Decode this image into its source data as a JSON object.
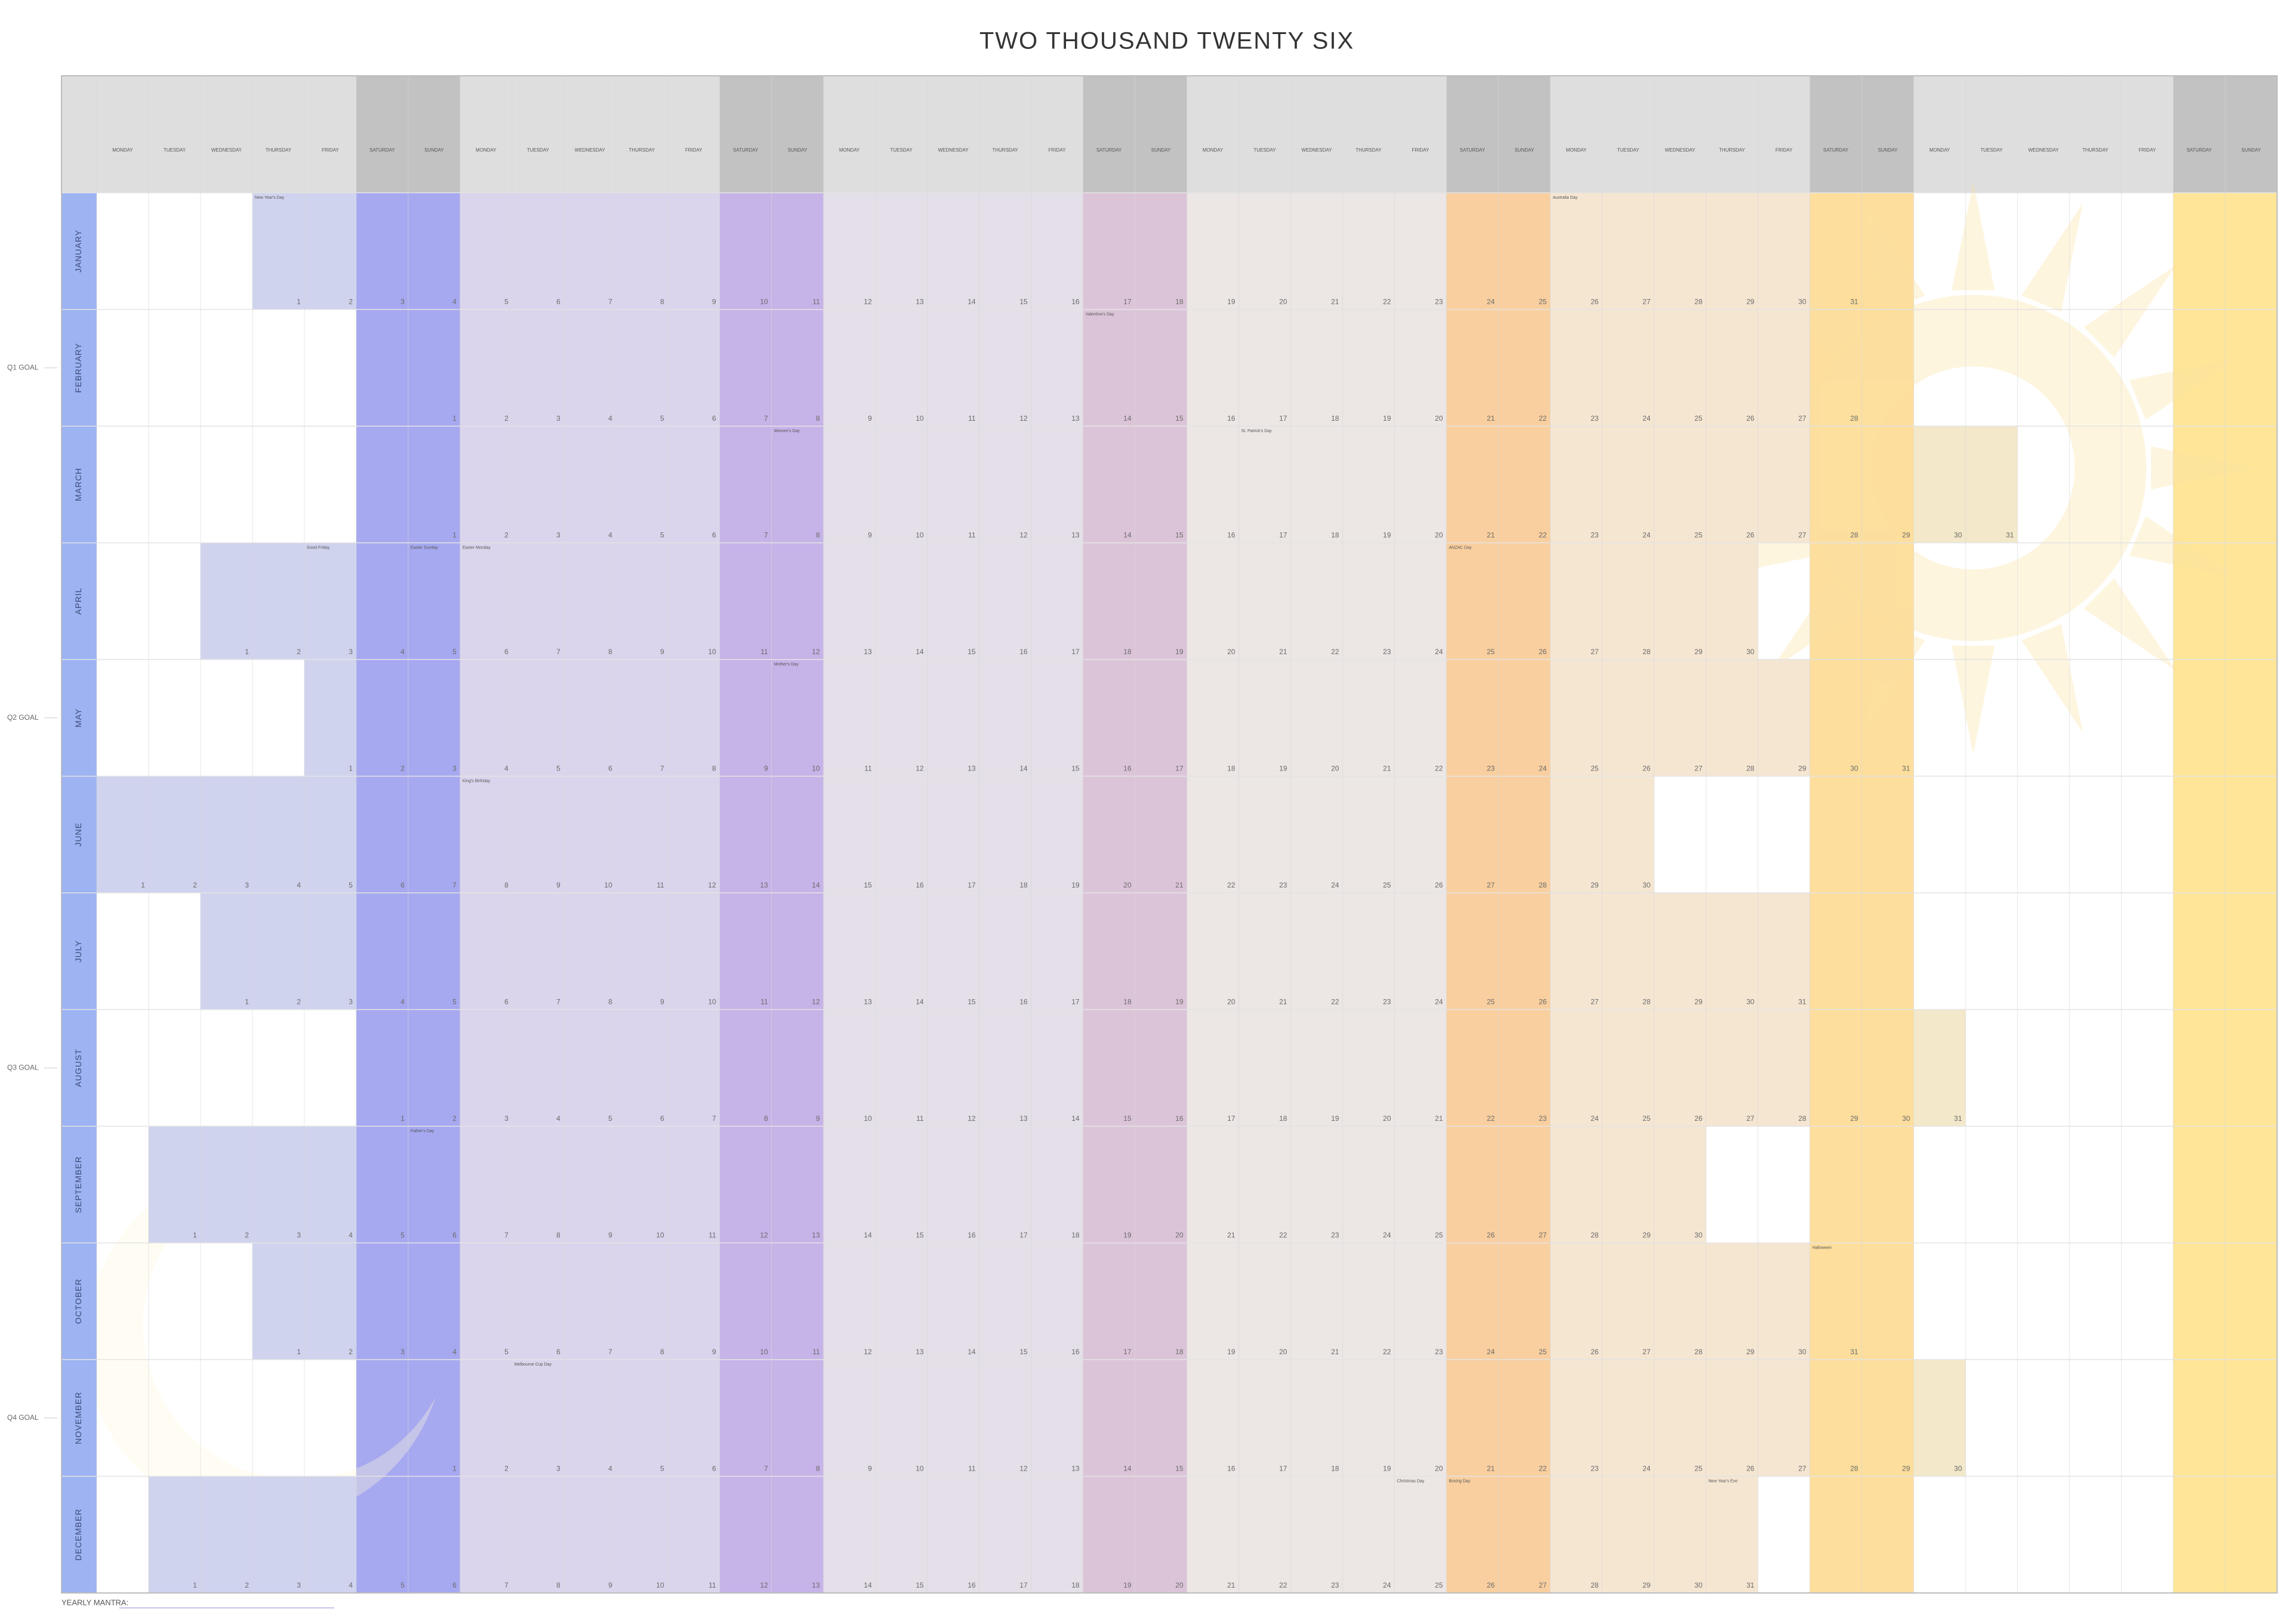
{
  "title": "TWO THOUSAND TWENTY SIX",
  "header": [
    "MONDAY",
    "TUESDAY",
    "WEDNESDAY",
    "THURSDAY",
    "FRIDAY",
    "SATURDAY",
    "SUNDAY",
    "MONDAY",
    "TUESDAY",
    "WEDNESDAY",
    "THURSDAY",
    "FRIDAY",
    "SATURDAY",
    "SUNDAY",
    "MONDAY",
    "TUESDAY",
    "WEDNESDAY",
    "THURSDAY",
    "FRIDAY",
    "SATURDAY",
    "SUNDAY",
    "MONDAY",
    "TUESDAY",
    "WEDNESDAY",
    "THURSDAY",
    "FRIDAY",
    "SATURDAY",
    "SUNDAY",
    "MONDAY",
    "TUESDAY",
    "WEDNESDAY",
    "THURSDAY",
    "FRIDAY",
    "SATURDAY",
    "SUNDAY",
    "MONDAY",
    "TUESDAY",
    "WEDNESDAY",
    "THURSDAY",
    "FRIDAY",
    "SATURDAY",
    "SUNDAY"
  ],
  "months": [
    {
      "name": "JANUARY",
      "holidays": {
        "1": "New Year's Day",
        "26": "Australia Day"
      },
      "cells": [
        null,
        null,
        null,
        1,
        2,
        3,
        4,
        5,
        6,
        7,
        8,
        9,
        10,
        11,
        12,
        13,
        14,
        15,
        16,
        17,
        18,
        19,
        20,
        21,
        22,
        23,
        24,
        25,
        26,
        27,
        28,
        29,
        30,
        31,
        null,
        null,
        null,
        null,
        null,
        null,
        null,
        null
      ]
    },
    {
      "name": "FEBRUARY",
      "holidays": {
        "14": "Valentine's Day"
      },
      "cells": [
        null,
        null,
        null,
        null,
        null,
        null,
        1,
        2,
        3,
        4,
        5,
        6,
        7,
        8,
        9,
        10,
        11,
        12,
        13,
        14,
        15,
        16,
        17,
        18,
        19,
        20,
        21,
        22,
        23,
        24,
        25,
        26,
        27,
        28,
        null,
        null,
        null,
        null,
        null,
        null,
        null,
        null
      ]
    },
    {
      "name": "MARCH",
      "holidays": {
        "8": "Women's Day",
        "17": "St. Patrick's Day"
      },
      "cells": [
        null,
        null,
        null,
        null,
        null,
        null,
        1,
        2,
        3,
        4,
        5,
        6,
        7,
        8,
        9,
        10,
        11,
        12,
        13,
        14,
        15,
        16,
        17,
        18,
        19,
        20,
        21,
        22,
        23,
        24,
        25,
        26,
        27,
        28,
        29,
        30,
        31,
        null,
        null,
        null,
        null,
        null
      ]
    },
    {
      "name": "APRIL",
      "holidays": {
        "3": "Good Friday",
        "5": "Easter Sunday",
        "6": "Easter Monday",
        "25": "ANZAC Day"
      },
      "cells": [
        null,
        null,
        1,
        2,
        3,
        4,
        5,
        6,
        7,
        8,
        9,
        10,
        11,
        12,
        13,
        14,
        15,
        16,
        17,
        18,
        19,
        20,
        21,
        22,
        23,
        24,
        25,
        26,
        27,
        28,
        29,
        30,
        null,
        null,
        null,
        null,
        null,
        null,
        null,
        null,
        null,
        null
      ]
    },
    {
      "name": "MAY",
      "holidays": {
        "10": "Mother's Day"
      },
      "cells": [
        null,
        null,
        null,
        null,
        1,
        2,
        3,
        4,
        5,
        6,
        7,
        8,
        9,
        10,
        11,
        12,
        13,
        14,
        15,
        16,
        17,
        18,
        19,
        20,
        21,
        22,
        23,
        24,
        25,
        26,
        27,
        28,
        29,
        30,
        31,
        null,
        null,
        null,
        null,
        null,
        null,
        null
      ]
    },
    {
      "name": "JUNE",
      "holidays": {
        "8": "King's Birthday"
      },
      "cells": [
        1,
        2,
        3,
        4,
        5,
        6,
        7,
        8,
        9,
        10,
        11,
        12,
        13,
        14,
        15,
        16,
        17,
        18,
        19,
        20,
        21,
        22,
        23,
        24,
        25,
        26,
        27,
        28,
        29,
        30,
        null,
        null,
        null,
        null,
        null,
        null,
        null,
        null,
        null,
        null,
        null,
        null
      ]
    },
    {
      "name": "JULY",
      "holidays": {},
      "cells": [
        null,
        null,
        1,
        2,
        3,
        4,
        5,
        6,
        7,
        8,
        9,
        10,
        11,
        12,
        13,
        14,
        15,
        16,
        17,
        18,
        19,
        20,
        21,
        22,
        23,
        24,
        25,
        26,
        27,
        28,
        29,
        30,
        31,
        null,
        null,
        null,
        null,
        null,
        null,
        null,
        null,
        null
      ]
    },
    {
      "name": "AUGUST",
      "holidays": {},
      "cells": [
        null,
        null,
        null,
        null,
        null,
        1,
        2,
        3,
        4,
        5,
        6,
        7,
        8,
        9,
        10,
        11,
        12,
        13,
        14,
        15,
        16,
        17,
        18,
        19,
        20,
        21,
        22,
        23,
        24,
        25,
        26,
        27,
        28,
        29,
        30,
        31,
        null,
        null,
        null,
        null,
        null,
        null
      ]
    },
    {
      "name": "SEPTEMBER",
      "holidays": {
        "6": "Father's Day"
      },
      "cells": [
        null,
        1,
        2,
        3,
        4,
        5,
        6,
        7,
        8,
        9,
        10,
        11,
        12,
        13,
        14,
        15,
        16,
        17,
        18,
        19,
        20,
        21,
        22,
        23,
        24,
        25,
        26,
        27,
        28,
        29,
        30,
        null,
        null,
        null,
        null,
        null,
        null,
        null,
        null,
        null,
        null,
        null
      ]
    },
    {
      "name": "OCTOBER",
      "holidays": {
        "31": "Halloween"
      },
      "cells": [
        null,
        null,
        null,
        1,
        2,
        3,
        4,
        5,
        6,
        7,
        8,
        9,
        10,
        11,
        12,
        13,
        14,
        15,
        16,
        17,
        18,
        19,
        20,
        21,
        22,
        23,
        24,
        25,
        26,
        27,
        28,
        29,
        30,
        31,
        null,
        null,
        null,
        null,
        null,
        null,
        null,
        null
      ]
    },
    {
      "name": "NOVEMBER",
      "holidays": {
        "3": "Melbourne Cup Day"
      },
      "cells": [
        null,
        null,
        null,
        null,
        null,
        null,
        1,
        2,
        3,
        4,
        5,
        6,
        7,
        8,
        9,
        10,
        11,
        12,
        13,
        14,
        15,
        16,
        17,
        18,
        19,
        20,
        21,
        22,
        23,
        24,
        25,
        26,
        27,
        28,
        29,
        30,
        null,
        null,
        null,
        null,
        null,
        null
      ]
    },
    {
      "name": "DECEMBER",
      "holidays": {
        "25": "Christmas Day",
        "26": "Boxing Day",
        "31": "New Year's Eve"
      },
      "cells": [
        null,
        1,
        2,
        3,
        4,
        5,
        6,
        7,
        8,
        9,
        10,
        11,
        12,
        13,
        14,
        15,
        16,
        17,
        18,
        19,
        20,
        21,
        22,
        23,
        24,
        25,
        26,
        27,
        28,
        29,
        30,
        31,
        null,
        null,
        null,
        null,
        null,
        null,
        null,
        null,
        null,
        null
      ]
    }
  ],
  "goals": [
    "Q1 GOAL",
    "Q2 GOAL",
    "Q3 GOAL",
    "Q4 GOAL"
  ],
  "footer": "YEARLY MANTRA:"
}
